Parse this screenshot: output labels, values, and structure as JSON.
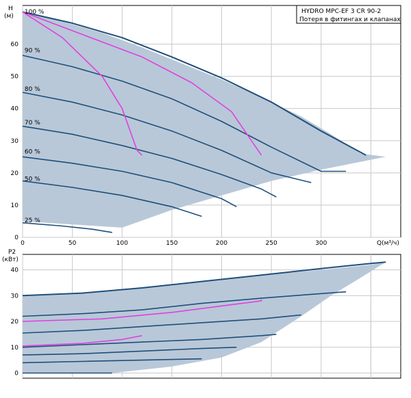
{
  "legend": {
    "model": "HYDRO MPC-EF 3 CR 90-2",
    "note": "Потеря в фитингах и клапанах"
  },
  "colors": {
    "fill": "#b8c8d8",
    "curve": "#1f4e7a",
    "system": "#e040e0",
    "grid": "#c8c8c8",
    "axis": "#000000"
  },
  "chart_data": [
    {
      "type": "line",
      "ylabel": "H",
      "yunit": "(м)",
      "xlabel": "Q(м³/ч)",
      "xlim": [
        0,
        380
      ],
      "ylim": [
        0,
        72
      ],
      "xticks": [
        0,
        50,
        100,
        150,
        200,
        250,
        300
      ],
      "yticks": [
        0,
        10,
        20,
        30,
        40,
        50,
        60
      ],
      "grid": true,
      "speed_labels": [
        {
          "text": "100 %",
          "x": 2,
          "y": 69.5
        },
        {
          "text": "90 %",
          "x": 2,
          "y": 57.5
        },
        {
          "text": "80 %",
          "x": 2,
          "y": 45.5
        },
        {
          "text": "70 %",
          "x": 2,
          "y": 35.0
        },
        {
          "text": "60 %",
          "x": 2,
          "y": 26.0
        },
        {
          "text": "50 %",
          "x": 2,
          "y": 17.5
        },
        {
          "text": "25 %",
          "x": 2,
          "y": 4.7
        }
      ],
      "envelope": [
        [
          0,
          70
        ],
        [
          40,
          67
        ],
        [
          80,
          63.5
        ],
        [
          120,
          59
        ],
        [
          160,
          54
        ],
        [
          200,
          49
        ],
        [
          240,
          43.5
        ],
        [
          280,
          37.5
        ],
        [
          310,
          32
        ],
        [
          340,
          26
        ],
        [
          365,
          25
        ],
        [
          0,
          8
        ]
      ],
      "envelope_bottom": [
        [
          365,
          25
        ],
        [
          300,
          21
        ],
        [
          250,
          17.5
        ],
        [
          200,
          13
        ],
        [
          150,
          8.5
        ],
        [
          100,
          3
        ],
        [
          0,
          5
        ]
      ],
      "series": [
        {
          "name": "",
          "kind": "curve",
          "points": [
            [
              0,
              70
            ],
            [
              50,
              66.5
            ],
            [
              100,
              62
            ],
            [
              150,
              56
            ],
            [
              200,
              49.5
            ],
            [
              250,
              42
            ],
            [
              300,
              33
            ],
            [
              345,
              25.5
            ]
          ]
        },
        {
          "name": "",
          "kind": "curve",
          "points": [
            [
              0,
              56.5
            ],
            [
              50,
              53
            ],
            [
              100,
              48.5
            ],
            [
              150,
              43
            ],
            [
              200,
              36
            ],
            [
              250,
              28
            ],
            [
              300,
              20.5
            ],
            [
              325,
              20.5
            ]
          ]
        },
        {
          "name": "",
          "kind": "curve",
          "points": [
            [
              0,
              45
            ],
            [
              50,
              42
            ],
            [
              100,
              38
            ],
            [
              150,
              33
            ],
            [
              200,
              27
            ],
            [
              250,
              20
            ],
            [
              290,
              17
            ]
          ]
        },
        {
          "name": "",
          "kind": "curve",
          "points": [
            [
              0,
              34.5
            ],
            [
              50,
              32
            ],
            [
              100,
              28.5
            ],
            [
              150,
              24.5
            ],
            [
              200,
              19.5
            ],
            [
              240,
              15
            ],
            [
              255,
              12.5
            ]
          ]
        },
        {
          "name": "",
          "kind": "curve",
          "points": [
            [
              0,
              25
            ],
            [
              50,
              23
            ],
            [
              100,
              20.5
            ],
            [
              150,
              17
            ],
            [
              200,
              12
            ],
            [
              215,
              9.5
            ]
          ]
        },
        {
          "name": "",
          "kind": "curve",
          "points": [
            [
              0,
              17.5
            ],
            [
              50,
              15.5
            ],
            [
              100,
              13
            ],
            [
              150,
              9.5
            ],
            [
              180,
              6.5
            ]
          ]
        },
        {
          "name": "",
          "kind": "curve",
          "points": [
            [
              0,
              4.5
            ],
            [
              40,
              3.5
            ],
            [
              70,
              2.5
            ],
            [
              90,
              1.5
            ]
          ]
        },
        {
          "name": "",
          "kind": "system",
          "points": [
            [
              0,
              70
            ],
            [
              60,
              63
            ],
            [
              120,
              56
            ],
            [
              170,
              48
            ],
            [
              210,
              39
            ],
            [
              240,
              25.5
            ]
          ]
        },
        {
          "name": "",
          "kind": "system",
          "points": [
            [
              0,
              70
            ],
            [
              40,
              62
            ],
            [
              80,
              50
            ],
            [
              100,
              40
            ],
            [
              115,
              27
            ],
            [
              120,
              25.5
            ]
          ]
        }
      ]
    },
    {
      "type": "line",
      "ylabel": "P2",
      "yunit": "(кВт)",
      "xlim": [
        0,
        380
      ],
      "ylim": [
        -2,
        46
      ],
      "yticks": [
        0,
        10,
        20,
        30,
        40
      ],
      "grid": true,
      "envelope": [
        [
          0,
          30
        ],
        [
          60,
          31
        ],
        [
          120,
          33
        ],
        [
          180,
          35.5
        ],
        [
          240,
          38
        ],
        [
          300,
          40
        ],
        [
          350,
          42
        ],
        [
          365,
          43
        ],
        [
          0,
          30
        ]
      ],
      "envelope_bottom": [
        [
          365,
          43
        ],
        [
          340,
          37
        ],
        [
          310,
          30
        ],
        [
          280,
          22
        ],
        [
          240,
          12
        ],
        [
          200,
          6
        ],
        [
          150,
          2.5
        ],
        [
          90,
          0
        ],
        [
          0,
          0
        ]
      ],
      "series": [
        {
          "name": "",
          "kind": "curve",
          "points": [
            [
              0,
              30
            ],
            [
              60,
              31
            ],
            [
              120,
              33
            ],
            [
              180,
              35.5
            ],
            [
              240,
              38
            ],
            [
              300,
              40.5
            ],
            [
              350,
              42.5
            ],
            [
              365,
              43
            ]
          ]
        },
        {
          "name": "",
          "kind": "curve",
          "points": [
            [
              0,
              22
            ],
            [
              60,
              23
            ],
            [
              120,
              24.5
            ],
            [
              180,
              27
            ],
            [
              240,
              29
            ],
            [
              290,
              30.5
            ],
            [
              325,
              31.5
            ]
          ]
        },
        {
          "name": "",
          "kind": "curve",
          "points": [
            [
              0,
              15.5
            ],
            [
              60,
              16.5
            ],
            [
              120,
              18
            ],
            [
              180,
              19.5
            ],
            [
              240,
              21
            ],
            [
              280,
              22.5
            ]
          ]
        },
        {
          "name": "",
          "kind": "curve",
          "points": [
            [
              0,
              10
            ],
            [
              60,
              11
            ],
            [
              120,
              12
            ],
            [
              180,
              13
            ],
            [
              240,
              14.5
            ],
            [
              255,
              15
            ]
          ]
        },
        {
          "name": "",
          "kind": "curve",
          "points": [
            [
              0,
              7
            ],
            [
              60,
              7.5
            ],
            [
              120,
              8.5
            ],
            [
              180,
              9.5
            ],
            [
              215,
              10
            ]
          ]
        },
        {
          "name": "",
          "kind": "curve",
          "points": [
            [
              0,
              4
            ],
            [
              60,
              4.5
            ],
            [
              120,
              5
            ],
            [
              180,
              5.5
            ]
          ]
        },
        {
          "name": "",
          "kind": "curve",
          "points": [
            [
              0,
              0
            ],
            [
              50,
              0
            ],
            [
              90,
              0
            ]
          ]
        },
        {
          "name": "",
          "kind": "system",
          "points": [
            [
              0,
              20
            ],
            [
              80,
              21
            ],
            [
              150,
              23.5
            ],
            [
              200,
              26
            ],
            [
              240,
              28
            ],
            [
              240,
              28.5
            ]
          ]
        },
        {
          "name": "",
          "kind": "system",
          "points": [
            [
              0,
              10.5
            ],
            [
              60,
              11.5
            ],
            [
              100,
              13
            ],
            [
              120,
              14.5
            ]
          ]
        }
      ]
    }
  ]
}
